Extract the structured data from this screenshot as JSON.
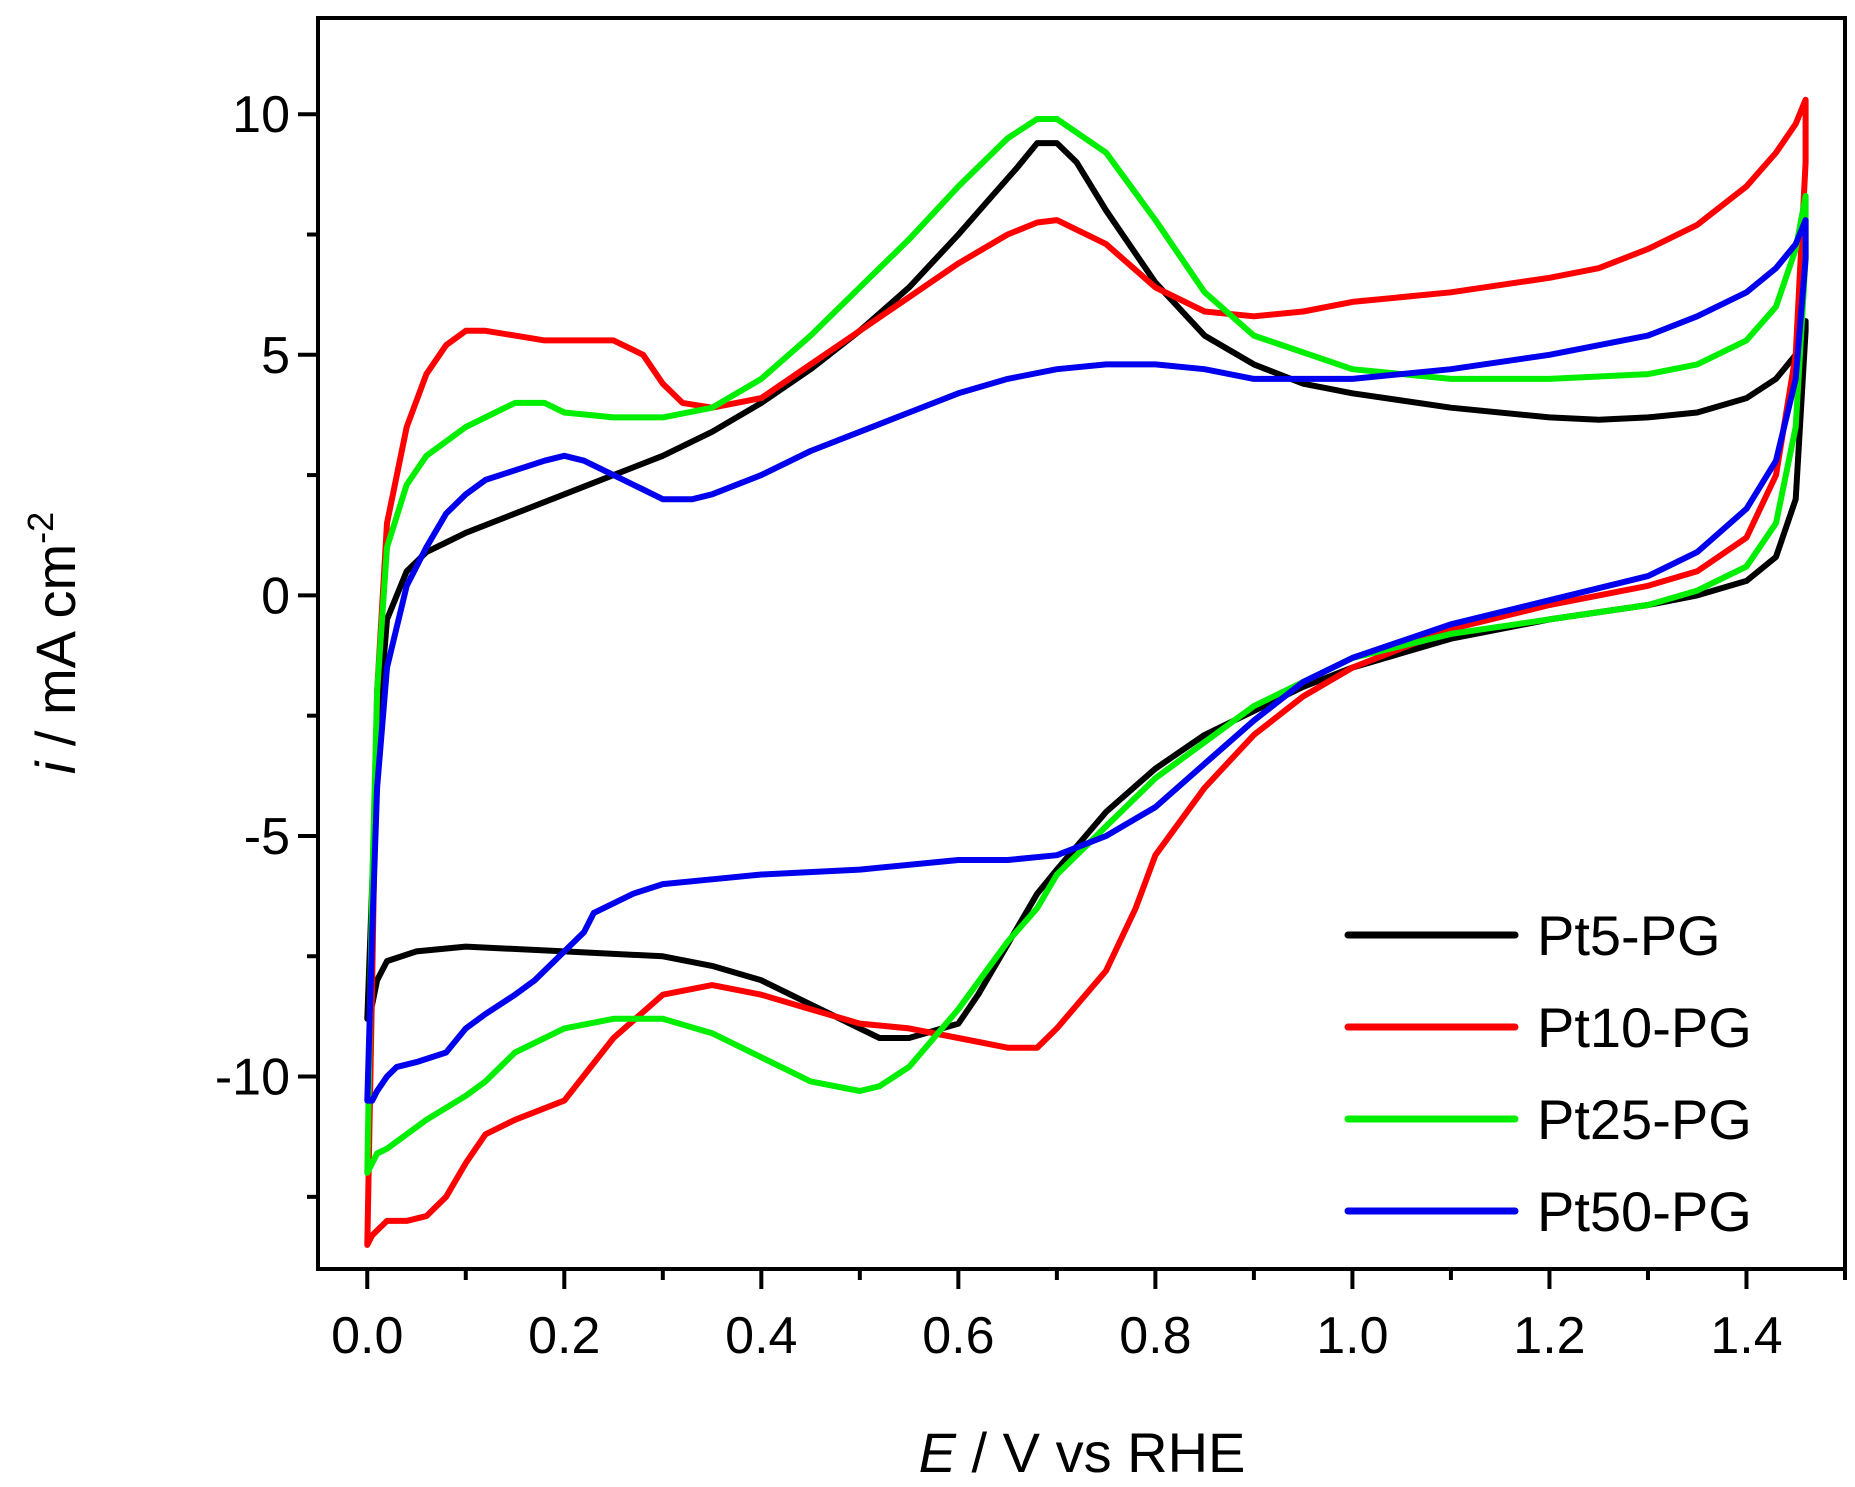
{
  "chart_data": {
    "type": "line",
    "title": "",
    "xlabel": {
      "italic": "E",
      "rest": " / V vs RHE"
    },
    "ylabel": {
      "italic": "i",
      "rest": " / mA cm",
      "sup": "-2"
    },
    "xlim": [
      -0.05,
      1.5
    ],
    "ylim": [
      -14,
      12
    ],
    "xticks": [
      0.0,
      0.2,
      0.4,
      0.6,
      0.8,
      1.0,
      1.2,
      1.4
    ],
    "xtick_labels": [
      "0.0",
      "0.2",
      "0.4",
      "0.6",
      "0.8",
      "1.0",
      "1.2",
      "1.4"
    ],
    "yticks": [
      -10,
      -5,
      0,
      5,
      10
    ],
    "ytick_labels": [
      "-10",
      "-5",
      "0",
      "5",
      "10"
    ],
    "legend_position": "bottom-right",
    "series": [
      {
        "name": "Pt5-PG",
        "color": "#000000",
        "x": [
          0.0,
          0.005,
          0.01,
          0.02,
          0.04,
          0.06,
          0.08,
          0.1,
          0.15,
          0.2,
          0.25,
          0.3,
          0.35,
          0.4,
          0.45,
          0.5,
          0.55,
          0.6,
          0.63,
          0.66,
          0.68,
          0.7,
          0.72,
          0.75,
          0.8,
          0.85,
          0.9,
          0.95,
          1.0,
          1.1,
          1.2,
          1.25,
          1.3,
          1.35,
          1.4,
          1.43,
          1.45,
          1.46,
          1.46,
          1.45,
          1.43,
          1.4,
          1.35,
          1.3,
          1.2,
          1.1,
          1.0,
          0.95,
          0.9,
          0.85,
          0.8,
          0.75,
          0.7,
          0.68,
          0.66,
          0.64,
          0.62,
          0.6,
          0.55,
          0.52,
          0.5,
          0.45,
          0.4,
          0.35,
          0.3,
          0.2,
          0.1,
          0.05,
          0.02,
          0.01,
          0.005,
          0.0
        ],
        "y": [
          -8.8,
          -6,
          -3,
          -0.5,
          0.5,
          0.9,
          1.1,
          1.3,
          1.7,
          2.1,
          2.5,
          2.9,
          3.4,
          4.0,
          4.7,
          5.5,
          6.4,
          7.5,
          8.2,
          8.9,
          9.4,
          9.4,
          9.0,
          8.0,
          6.5,
          5.4,
          4.8,
          4.4,
          4.2,
          3.9,
          3.7,
          3.65,
          3.7,
          3.8,
          4.1,
          4.5,
          5.0,
          5.7,
          5.5,
          2.0,
          0.8,
          0.3,
          0.0,
          -0.2,
          -0.5,
          -0.9,
          -1.5,
          -1.9,
          -2.4,
          -2.9,
          -3.6,
          -4.5,
          -5.7,
          -6.2,
          -6.9,
          -7.6,
          -8.3,
          -8.9,
          -9.2,
          -9.2,
          -9.0,
          -8.5,
          -8.0,
          -7.7,
          -7.5,
          -7.4,
          -7.3,
          -7.4,
          -7.6,
          -8.0,
          -8.5,
          -8.8
        ]
      },
      {
        "name": "Pt10-PG",
        "color": "#ff0000",
        "x": [
          0.0,
          0.005,
          0.01,
          0.02,
          0.04,
          0.06,
          0.08,
          0.1,
          0.12,
          0.15,
          0.18,
          0.2,
          0.25,
          0.28,
          0.3,
          0.32,
          0.35,
          0.4,
          0.45,
          0.5,
          0.55,
          0.6,
          0.65,
          0.68,
          0.7,
          0.75,
          0.8,
          0.85,
          0.9,
          0.95,
          1.0,
          1.1,
          1.2,
          1.25,
          1.3,
          1.35,
          1.4,
          1.43,
          1.45,
          1.46,
          1.46,
          1.45,
          1.43,
          1.4,
          1.35,
          1.3,
          1.25,
          1.2,
          1.1,
          1.0,
          0.95,
          0.9,
          0.85,
          0.8,
          0.78,
          0.75,
          0.7,
          0.68,
          0.65,
          0.6,
          0.55,
          0.5,
          0.45,
          0.4,
          0.35,
          0.3,
          0.25,
          0.2,
          0.15,
          0.12,
          0.1,
          0.08,
          0.06,
          0.04,
          0.02,
          0.01,
          0.005,
          0.0
        ],
        "y": [
          -13.5,
          -8,
          -2,
          1.5,
          3.5,
          4.6,
          5.2,
          5.5,
          5.5,
          5.4,
          5.3,
          5.3,
          5.3,
          5.0,
          4.4,
          4.0,
          3.9,
          4.1,
          4.8,
          5.5,
          6.2,
          6.9,
          7.5,
          7.75,
          7.8,
          7.3,
          6.4,
          5.9,
          5.8,
          5.9,
          6.1,
          6.3,
          6.6,
          6.8,
          7.2,
          7.7,
          8.5,
          9.2,
          9.8,
          10.3,
          9.0,
          5.0,
          2.5,
          1.2,
          0.5,
          0.2,
          0.0,
          -0.2,
          -0.7,
          -1.5,
          -2.1,
          -2.9,
          -4.0,
          -5.4,
          -6.5,
          -7.8,
          -9.0,
          -9.4,
          -9.4,
          -9.2,
          -9.0,
          -8.9,
          -8.6,
          -8.3,
          -8.1,
          -8.3,
          -9.2,
          -10.5,
          -10.9,
          -11.2,
          -11.8,
          -12.5,
          -12.9,
          -13.0,
          -13.0,
          -13.2,
          -13.3,
          -13.5
        ]
      },
      {
        "name": "Pt25-PG",
        "color": "#00ee00",
        "x": [
          0.0,
          0.005,
          0.01,
          0.02,
          0.04,
          0.06,
          0.08,
          0.1,
          0.13,
          0.15,
          0.18,
          0.2,
          0.25,
          0.3,
          0.35,
          0.4,
          0.45,
          0.5,
          0.55,
          0.6,
          0.65,
          0.68,
          0.7,
          0.75,
          0.8,
          0.85,
          0.9,
          1.0,
          1.1,
          1.2,
          1.3,
          1.35,
          1.4,
          1.43,
          1.45,
          1.46,
          1.46,
          1.45,
          1.43,
          1.4,
          1.35,
          1.3,
          1.2,
          1.1,
          1.0,
          0.9,
          0.8,
          0.75,
          0.7,
          0.68,
          0.65,
          0.6,
          0.55,
          0.52,
          0.5,
          0.45,
          0.4,
          0.35,
          0.3,
          0.25,
          0.2,
          0.15,
          0.12,
          0.1,
          0.06,
          0.02,
          0.01,
          0.005,
          0.0
        ],
        "y": [
          -12.0,
          -6,
          -2,
          1.0,
          2.3,
          2.9,
          3.2,
          3.5,
          3.8,
          4.0,
          4.0,
          3.8,
          3.7,
          3.7,
          3.9,
          4.5,
          5.4,
          6.4,
          7.4,
          8.5,
          9.5,
          9.9,
          9.9,
          9.2,
          7.8,
          6.3,
          5.4,
          4.7,
          4.5,
          4.5,
          4.6,
          4.8,
          5.3,
          6.0,
          7.2,
          8.3,
          7.0,
          3.5,
          1.5,
          0.6,
          0.1,
          -0.2,
          -0.5,
          -0.8,
          -1.3,
          -2.3,
          -3.8,
          -4.8,
          -5.8,
          -6.5,
          -7.2,
          -8.6,
          -9.8,
          -10.2,
          -10.3,
          -10.1,
          -9.6,
          -9.1,
          -8.8,
          -8.8,
          -9.0,
          -9.5,
          -10.1,
          -10.4,
          -10.9,
          -11.5,
          -11.6,
          -11.8,
          -12.0
        ]
      },
      {
        "name": "Pt50-PG",
        "color": "#0000ee",
        "x": [
          0.0,
          0.005,
          0.01,
          0.02,
          0.04,
          0.06,
          0.08,
          0.1,
          0.12,
          0.15,
          0.18,
          0.2,
          0.22,
          0.25,
          0.28,
          0.3,
          0.33,
          0.35,
          0.4,
          0.45,
          0.5,
          0.55,
          0.6,
          0.65,
          0.7,
          0.75,
          0.8,
          0.85,
          0.9,
          0.95,
          1.0,
          1.1,
          1.2,
          1.3,
          1.35,
          1.4,
          1.43,
          1.45,
          1.46,
          1.46,
          1.45,
          1.43,
          1.4,
          1.35,
          1.3,
          1.2,
          1.1,
          1.0,
          0.95,
          0.9,
          0.85,
          0.8,
          0.75,
          0.7,
          0.65,
          0.6,
          0.5,
          0.4,
          0.35,
          0.3,
          0.27,
          0.23,
          0.22,
          0.2,
          0.17,
          0.15,
          0.12,
          0.1,
          0.08,
          0.05,
          0.03,
          0.02,
          0.01,
          0.005,
          0.0
        ],
        "y": [
          -10.5,
          -7,
          -4,
          -1.5,
          0.2,
          1.0,
          1.7,
          2.1,
          2.4,
          2.6,
          2.8,
          2.9,
          2.8,
          2.5,
          2.2,
          2.0,
          2.0,
          2.1,
          2.5,
          3.0,
          3.4,
          3.8,
          4.2,
          4.5,
          4.7,
          4.8,
          4.8,
          4.7,
          4.5,
          4.5,
          4.5,
          4.7,
          5.0,
          5.4,
          5.8,
          6.3,
          6.8,
          7.3,
          7.8,
          7.0,
          4.5,
          2.8,
          1.8,
          0.9,
          0.4,
          -0.1,
          -0.6,
          -1.3,
          -1.8,
          -2.6,
          -3.5,
          -4.4,
          -5.0,
          -5.4,
          -5.5,
          -5.5,
          -5.7,
          -5.8,
          -5.9,
          -6.0,
          -6.2,
          -6.6,
          -7.0,
          -7.4,
          -8.0,
          -8.3,
          -8.7,
          -9.0,
          -9.5,
          -9.7,
          -9.8,
          -10.0,
          -10.3,
          -10.5,
          -10.5
        ]
      }
    ]
  }
}
